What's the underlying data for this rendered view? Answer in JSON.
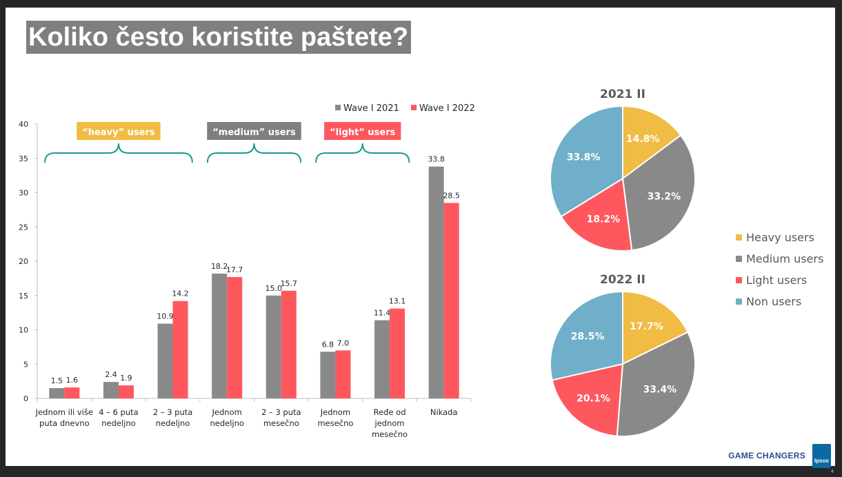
{
  "title": "Koliko često koristite paštete?",
  "colors": {
    "wave2021": "#898989",
    "wave2022": "#fe575e",
    "heavy": "#f1bc44",
    "medium": "#898989",
    "light": "#fe575e",
    "non": "#6fafc9",
    "bracket": "#1a9a91",
    "groupMedium": "#7f7f7f"
  },
  "groups": [
    {
      "label": "“heavy” users",
      "color_key": "heavy"
    },
    {
      "label": "“medium” users",
      "color_key": "groupMedium"
    },
    {
      "label": "“light” users",
      "color_key": "light"
    }
  ],
  "chart_data": [
    {
      "type": "bar",
      "categories": [
        [
          "Jednom ili više",
          "puta dnevno"
        ],
        [
          "4 – 6 puta",
          "nedeljno"
        ],
        [
          "2 – 3 puta",
          "nedeljno"
        ],
        [
          "Jednom",
          "nedeljno"
        ],
        [
          "2 – 3 puta",
          "mesečno"
        ],
        [
          "Jednom",
          "mesečno"
        ],
        [
          "Ređe od",
          "jednom",
          "mesečno"
        ],
        [
          "Nikada"
        ]
      ],
      "series": [
        {
          "name": "Wave I 2021",
          "values": [
            1.5,
            2.4,
            10.9,
            18.2,
            15.0,
            6.8,
            11.4,
            33.8
          ]
        },
        {
          "name": "Wave I 2022",
          "values": [
            1.6,
            1.9,
            14.2,
            17.7,
            15.7,
            7.0,
            13.1,
            28.5
          ]
        }
      ],
      "ylim": [
        0,
        40
      ],
      "yticks": [
        0,
        5,
        10,
        15,
        20,
        25,
        30,
        35,
        40
      ],
      "grid": false,
      "legend": "top-right"
    },
    {
      "type": "pie",
      "title": "2021 II",
      "labels": [
        "Heavy users",
        "Medium users",
        "Light users",
        "Non users"
      ],
      "values": [
        14.8,
        33.2,
        18.2,
        33.8
      ]
    },
    {
      "type": "pie",
      "title": "2022 II",
      "labels": [
        "Heavy users",
        "Medium users",
        "Light users",
        "Non users"
      ],
      "values": [
        17.7,
        33.4,
        20.1,
        28.5
      ]
    }
  ],
  "pie_legend": [
    "Heavy users",
    "Medium users",
    "Light users",
    "Non users"
  ],
  "footer": {
    "brand": "GAME CHANGERS",
    "logo": "Ipsos",
    "page": "4"
  }
}
